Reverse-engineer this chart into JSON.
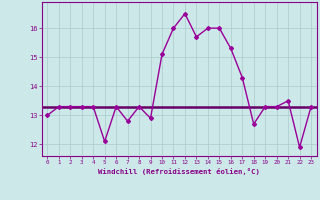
{
  "x": [
    0,
    1,
    2,
    3,
    4,
    5,
    6,
    7,
    8,
    9,
    10,
    11,
    12,
    13,
    14,
    15,
    16,
    17,
    18,
    19,
    20,
    21,
    22,
    23
  ],
  "y": [
    13.0,
    13.3,
    13.3,
    13.3,
    13.3,
    12.1,
    13.3,
    12.8,
    13.3,
    12.9,
    15.1,
    16.0,
    16.5,
    15.7,
    16.0,
    16.0,
    15.3,
    14.3,
    12.7,
    13.3,
    13.3,
    13.5,
    11.9,
    13.3
  ],
  "line_color": "#990099",
  "marker_color": "#990099",
  "bg_color": "#cce8e8",
  "grid_color": "#aacccc",
  "xlabel": "Windchill (Refroidissement éolien,°C)",
  "ylim_min": 11.6,
  "ylim_max": 16.9,
  "xlim_min": -0.5,
  "xlim_max": 23.5,
  "yticks": [
    12,
    13,
    14,
    15,
    16
  ],
  "xticks": [
    0,
    1,
    2,
    3,
    4,
    5,
    6,
    7,
    8,
    9,
    10,
    11,
    12,
    13,
    14,
    15,
    16,
    17,
    18,
    19,
    20,
    21,
    22,
    23
  ],
  "tick_color": "#880088",
  "xlabel_color": "#880088",
  "mean_line_y": 13.3,
  "mean_line_color": "#660066"
}
